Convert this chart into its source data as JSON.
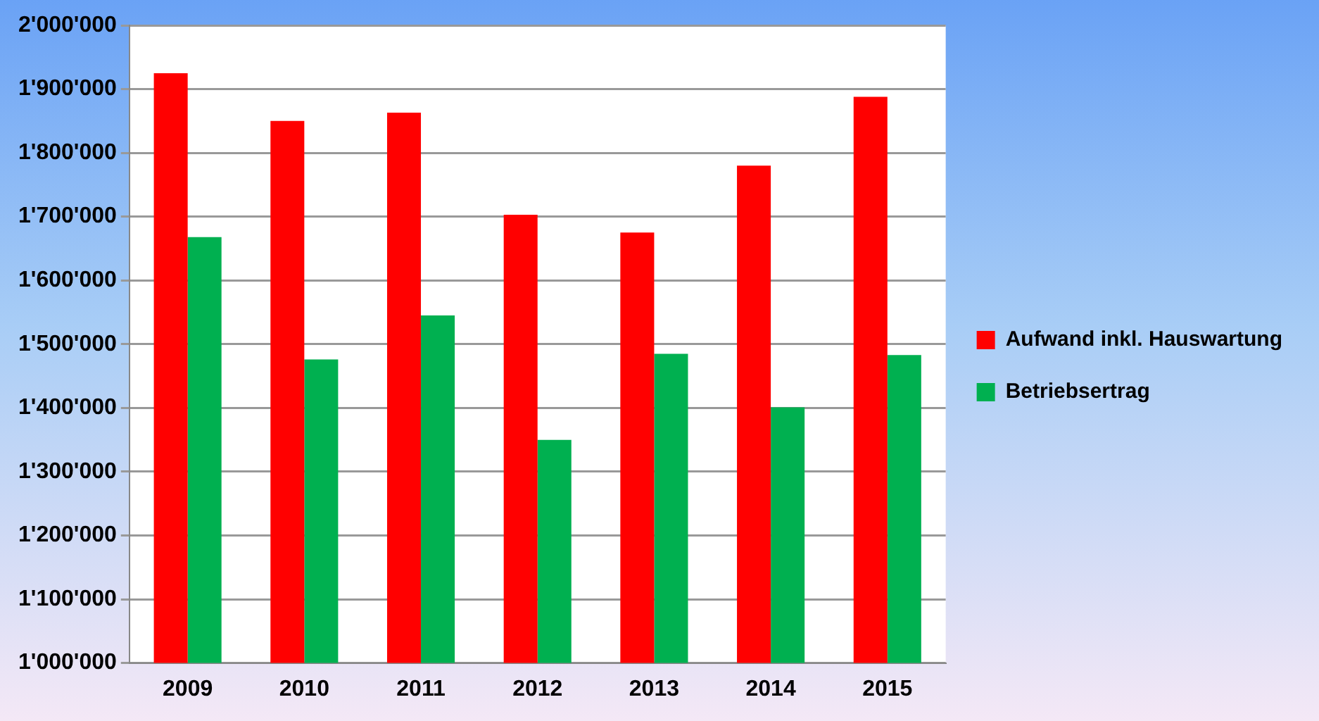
{
  "chart_data": {
    "type": "bar",
    "categories": [
      "2009",
      "2010",
      "2011",
      "2012",
      "2013",
      "2014",
      "2015"
    ],
    "series": [
      {
        "name": "Aufwand inkl. Hauswartung",
        "color": "#ff0000",
        "values": [
          1925000,
          1850000,
          1863000,
          1703000,
          1675000,
          1780000,
          1888000
        ]
      },
      {
        "name": "Betriebsertrag",
        "color": "#00b050",
        "values": [
          1668000,
          1476000,
          1545000,
          1350000,
          1485000,
          1401000,
          1483000
        ]
      }
    ],
    "ylim": [
      1000000,
      2000000
    ],
    "yticks": [
      {
        "value": 1000000,
        "label": "1'000'000"
      },
      {
        "value": 1100000,
        "label": "1'100'000"
      },
      {
        "value": 1200000,
        "label": "1'200'000"
      },
      {
        "value": 1300000,
        "label": "1'300'000"
      },
      {
        "value": 1400000,
        "label": "1'400'000"
      },
      {
        "value": 1500000,
        "label": "1'500'000"
      },
      {
        "value": 1600000,
        "label": "1'600'000"
      },
      {
        "value": 1700000,
        "label": "1'700'000"
      },
      {
        "value": 1800000,
        "label": "1'800'000"
      },
      {
        "value": 1900000,
        "label": "1'900'000"
      },
      {
        "value": 2000000,
        "label": "2'000'000"
      }
    ],
    "grid": "y",
    "legend": "right"
  }
}
